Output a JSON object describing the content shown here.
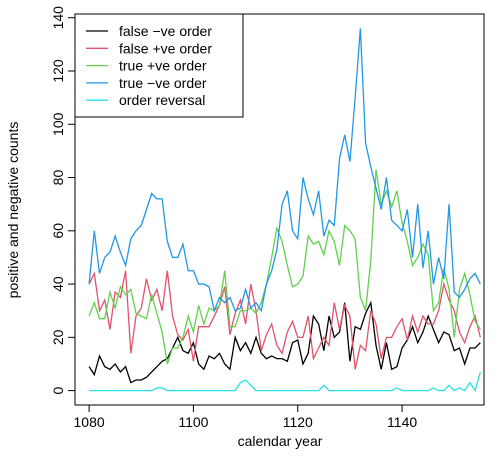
{
  "chart_data": {
    "type": "line",
    "x_label": "calendar year",
    "y_label": "positive and negative counts",
    "x": [
      1080,
      1081,
      1082,
      1083,
      1084,
      1085,
      1086,
      1087,
      1088,
      1089,
      1090,
      1091,
      1092,
      1093,
      1094,
      1095,
      1096,
      1097,
      1098,
      1099,
      1100,
      1101,
      1102,
      1103,
      1104,
      1105,
      1106,
      1107,
      1108,
      1109,
      1110,
      1111,
      1112,
      1113,
      1114,
      1115,
      1116,
      1117,
      1118,
      1119,
      1120,
      1121,
      1122,
      1123,
      1124,
      1125,
      1126,
      1127,
      1128,
      1129,
      1130,
      1131,
      1132,
      1133,
      1134,
      1135,
      1136,
      1137,
      1138,
      1139,
      1140,
      1141,
      1142,
      1143,
      1144,
      1145,
      1146,
      1147,
      1148,
      1149,
      1150,
      1151,
      1152,
      1153,
      1154,
      1155
    ],
    "series": [
      {
        "name": "false −ve order",
        "color": "#000000",
        "values": [
          9,
          6,
          13,
          9,
          8,
          10,
          7,
          9,
          3,
          4,
          4,
          5,
          7,
          9,
          11,
          12,
          16,
          20,
          15,
          14,
          18,
          10,
          8,
          13,
          12,
          14,
          10,
          8,
          20,
          15,
          18,
          14,
          20,
          14,
          12,
          13,
          12,
          12,
          11,
          18,
          19,
          10,
          14,
          28,
          25,
          15,
          28,
          20,
          22,
          33,
          11,
          24,
          23,
          29,
          33,
          17,
          8,
          18,
          8,
          9,
          16,
          19,
          24,
          18,
          22,
          28,
          23,
          18,
          22,
          21,
          15,
          16,
          10,
          16,
          16,
          18
        ]
      },
      {
        "name": "false +ve order",
        "color": "#DF536B",
        "values": [
          40,
          44,
          30,
          34,
          23,
          37,
          35,
          45,
          14,
          28,
          31,
          42,
          34,
          38,
          30,
          45,
          28,
          21,
          19,
          23,
          11,
          24,
          24,
          24,
          28,
          32,
          39,
          21,
          29,
          34,
          25,
          40,
          30,
          15,
          21,
          25,
          17,
          14,
          22,
          26,
          20,
          20,
          28,
          12,
          16,
          20,
          17,
          33,
          23,
          32,
          28,
          8,
          17,
          15,
          30,
          25,
          12,
          20,
          20,
          24,
          27,
          19,
          28,
          22,
          28,
          25,
          25,
          30,
          40,
          34,
          30,
          22,
          18,
          24,
          28,
          20
        ]
      },
      {
        "name": "true +ve order",
        "color": "#61D04F",
        "values": [
          28,
          33,
          27,
          27,
          37,
          31,
          39,
          36,
          38,
          29,
          28,
          27,
          36,
          29,
          22,
          10,
          16,
          16,
          20,
          28,
          22,
          32,
          25,
          31,
          30,
          32,
          45,
          24,
          24,
          30,
          30,
          31,
          29,
          33,
          40,
          50,
          61,
          56,
          47,
          39,
          40,
          43,
          58,
          55,
          56,
          51,
          60,
          56,
          47,
          62,
          60,
          57,
          35,
          30,
          49,
          83,
          70,
          75,
          69,
          75,
          63,
          56,
          47,
          50,
          55,
          51,
          30,
          33,
          46,
          38,
          20,
          38,
          44,
          36,
          26,
          23
        ]
      },
      {
        "name": "true −ve order",
        "color": "#2297E6",
        "values": [
          40,
          60,
          44,
          50,
          52,
          58,
          52,
          47,
          57,
          60,
          62,
          68,
          74,
          72,
          72,
          56,
          50,
          50,
          55,
          45,
          45,
          40,
          40,
          39,
          30,
          35,
          33,
          35,
          30,
          31,
          38,
          31,
          33,
          30,
          40,
          45,
          53,
          70,
          75,
          60,
          57,
          80,
          72,
          66,
          75,
          58,
          64,
          62,
          87,
          96,
          86,
          110,
          136,
          93,
          84,
          76,
          68,
          80,
          64,
          62,
          60,
          68,
          50,
          70,
          46,
          60,
          40,
          50,
          42,
          70,
          37,
          35,
          38,
          42,
          44,
          40
        ]
      },
      {
        "name": "order reversal",
        "color": "#28E2E5",
        "values": [
          0,
          0,
          0,
          0,
          0,
          0,
          0,
          0,
          0,
          0,
          0,
          0,
          0,
          1,
          1,
          0,
          0,
          0,
          0,
          0,
          0,
          0,
          0,
          0,
          0,
          0,
          0,
          0,
          0,
          3,
          4,
          2,
          0,
          0,
          0,
          0,
          0,
          0,
          0,
          0,
          0,
          0,
          0,
          0,
          0,
          2,
          0,
          0,
          0,
          0,
          0,
          0,
          0,
          0,
          0,
          0,
          0,
          0,
          0,
          1,
          0,
          0,
          0,
          0,
          0,
          0,
          1,
          0,
          0,
          2,
          0,
          1,
          0,
          3,
          0,
          7
        ]
      }
    ],
    "xlim": [
      1077.3,
      1155.7
    ],
    "xticks": [
      1080,
      1100,
      1120,
      1140
    ],
    "ylim": [
      -5.4,
      141.4
    ],
    "yticks": [
      0,
      20,
      40,
      60,
      80,
      100,
      120,
      140
    ],
    "legend": "top-left"
  }
}
